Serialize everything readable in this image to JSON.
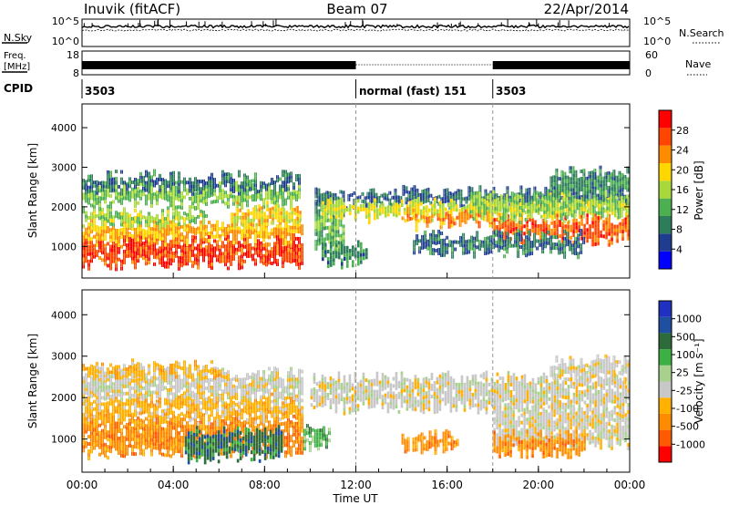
{
  "header": {
    "title_left": "Inuvik (fitACF)",
    "title_center": "Beam 07",
    "title_right": "22/Apr/2014"
  },
  "noise_panel": {
    "left_label": "N.Sky",
    "right_label": "N.Search",
    "left_ticks": [
      "10^5",
      "10^0"
    ],
    "right_ticks": [
      "10^5",
      "10^0"
    ]
  },
  "freq_panel": {
    "left_label_line1": "Freq.",
    "left_label_line2": "[MHz]",
    "left_ticks": [
      "18",
      "8"
    ],
    "right_label": "Nave",
    "right_ticks": [
      "60",
      "0"
    ]
  },
  "cpid": {
    "label": "CPID",
    "segments": [
      {
        "start_hour": 0,
        "text": "3503"
      },
      {
        "start_hour": 12,
        "text": "normal (fast) 151"
      },
      {
        "start_hour": 18,
        "text": "3503"
      }
    ]
  },
  "colors": {
    "power": [
      "#0000ff",
      "#1e3d8f",
      "#2e7d5a",
      "#4caf50",
      "#a8d93a",
      "#ffd700",
      "#ff8c00",
      "#ff4500",
      "#ff0000"
    ],
    "velocity": [
      "#ff0000",
      "#ff5a00",
      "#ff8c00",
      "#ffb000",
      "#c8c8c8",
      "#a9d18e",
      "#3cb043",
      "#2e6b3a",
      "#1e4fa0",
      "#2030c0"
    ]
  },
  "chart_data": [
    {
      "type": "heatmap",
      "name": "power",
      "xlabel": "",
      "ylabel": "Slant Range [km]",
      "x_range_hours": [
        0,
        24
      ],
      "ylim": [
        200,
        4600
      ],
      "yticks": [
        "1000",
        "2000",
        "3000",
        "4000"
      ],
      "colorbar_label": "Power [dB]",
      "colorbar_ticks": [
        "4",
        "8",
        "12",
        "16",
        "20",
        "24",
        "28"
      ],
      "colorbar_range": [
        0,
        32
      ],
      "regions": [
        {
          "t0": 0.0,
          "t1": 9.7,
          "r0": 600,
          "r1": 1200,
          "v": 29
        },
        {
          "t0": 0.0,
          "t1": 9.7,
          "r0": 1200,
          "r1": 1600,
          "v": 22
        },
        {
          "t0": 0.0,
          "t1": 5.5,
          "r0": 1600,
          "r1": 1900,
          "v": 15
        },
        {
          "t0": 0.0,
          "t1": 9.5,
          "r0": 2100,
          "r1": 2500,
          "v": 14
        },
        {
          "t0": 0.0,
          "t1": 9.5,
          "r0": 2500,
          "r1": 2800,
          "v": 7
        },
        {
          "t0": 6.5,
          "t1": 9.5,
          "r0": 1600,
          "r1": 2000,
          "v": 20
        },
        {
          "t0": 10.2,
          "t1": 11.5,
          "r0": 1000,
          "r1": 2100,
          "v": 12
        },
        {
          "t0": 10.2,
          "t1": 24.0,
          "r0": 2100,
          "r1": 2400,
          "v": 6
        },
        {
          "t0": 10.5,
          "t1": 24.0,
          "r0": 1800,
          "r1": 2100,
          "v": 18
        },
        {
          "t0": 14.0,
          "t1": 18.0,
          "r0": 1600,
          "r1": 1850,
          "v": 24
        },
        {
          "t0": 18.0,
          "t1": 24.0,
          "r0": 1200,
          "r1": 1700,
          "v": 27
        },
        {
          "t0": 17.0,
          "t1": 24.0,
          "r0": 1800,
          "r1": 2300,
          "v": 15
        },
        {
          "t0": 14.5,
          "t1": 22.0,
          "r0": 900,
          "r1": 1300,
          "v": 7
        },
        {
          "t0": 20.5,
          "t1": 24.0,
          "r0": 2300,
          "r1": 2900,
          "v": 9
        },
        {
          "t0": 10.5,
          "t1": 12.5,
          "r0": 600,
          "r1": 1000,
          "v": 9
        }
      ]
    },
    {
      "type": "heatmap",
      "name": "velocity",
      "xlabel": "Time UT",
      "ylabel": "Slant Range [km]",
      "x_range_hours": [
        0,
        24
      ],
      "xticks": [
        "00:00",
        "04:00",
        "08:00",
        "12:00",
        "16:00",
        "20:00",
        "00:00"
      ],
      "ylim": [
        200,
        4600
      ],
      "yticks": [
        "1000",
        "2000",
        "3000",
        "4000"
      ],
      "colorbar_label": "Velocity [m s⁻¹]",
      "colorbar_ticks": [
        "-1000",
        "-500",
        "-100",
        "-25",
        "25",
        "100",
        "500",
        "1000"
      ],
      "regions": [
        {
          "t0": 0.0,
          "t1": 9.7,
          "r0": 700,
          "r1": 1500,
          "v": 2
        },
        {
          "t0": 4.5,
          "t1": 8.7,
          "r0": 600,
          "r1": 1200,
          "v": 7
        },
        {
          "t0": 0.0,
          "t1": 9.6,
          "r0": 1500,
          "r1": 2000,
          "v": 3
        },
        {
          "t0": 0.0,
          "t1": 9.6,
          "r0": 2000,
          "r1": 2600,
          "v": 4
        },
        {
          "t0": 0.0,
          "t1": 6.0,
          "r0": 2600,
          "r1": 2800,
          "v": 3
        },
        {
          "t0": 9.7,
          "t1": 10.8,
          "r0": 900,
          "r1": 1300,
          "v": 6
        },
        {
          "t0": 10.0,
          "t1": 24.0,
          "r0": 1800,
          "r1": 2500,
          "v": 4
        },
        {
          "t0": 18.0,
          "t1": 24.0,
          "r0": 900,
          "r1": 1800,
          "v": 4
        },
        {
          "t0": 18.0,
          "t1": 22.0,
          "r0": 700,
          "r1": 1100,
          "v": 2
        },
        {
          "t0": 14.0,
          "t1": 16.5,
          "r0": 800,
          "r1": 1100,
          "v": 2
        },
        {
          "t0": 20.5,
          "t1": 24.0,
          "r0": 2500,
          "r1": 2900,
          "v": 4
        }
      ]
    }
  ]
}
